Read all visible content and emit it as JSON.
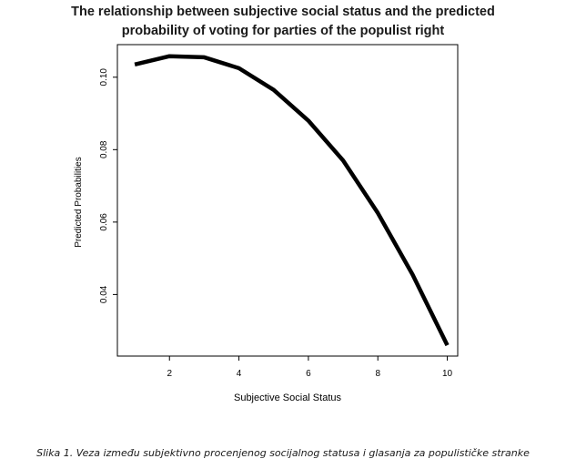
{
  "chart_data": {
    "type": "line",
    "title_line1": "The relationship between subjective social status and the predicted",
    "title_line2": "probability of voting for  parties of the populist right",
    "xlabel": "Subjective Social Status",
    "ylabel": "Predicted Probabilities",
    "xlim": [
      0.5,
      10.3
    ],
    "ylim": [
      0.023,
      0.109
    ],
    "xticks": [
      2,
      4,
      6,
      8,
      10
    ],
    "yticks": [
      0.04,
      0.06,
      0.08,
      0.1
    ],
    "ytick_labels": [
      "0.04",
      "0.06",
      "0.08",
      "0.10"
    ],
    "grid": false,
    "line_color": "#000000",
    "series": [
      {
        "x": [
          1,
          2,
          3,
          4,
          5,
          6,
          7,
          8,
          9,
          10
        ],
        "y": [
          0.1035,
          0.1058,
          0.1055,
          0.1025,
          0.0965,
          0.088,
          0.077,
          0.0625,
          0.0455,
          0.026
        ]
      }
    ]
  },
  "caption": "Slika 1. Veza između subjektivno procenjenog socijalnog statusa i glasanja za populističke stranke"
}
